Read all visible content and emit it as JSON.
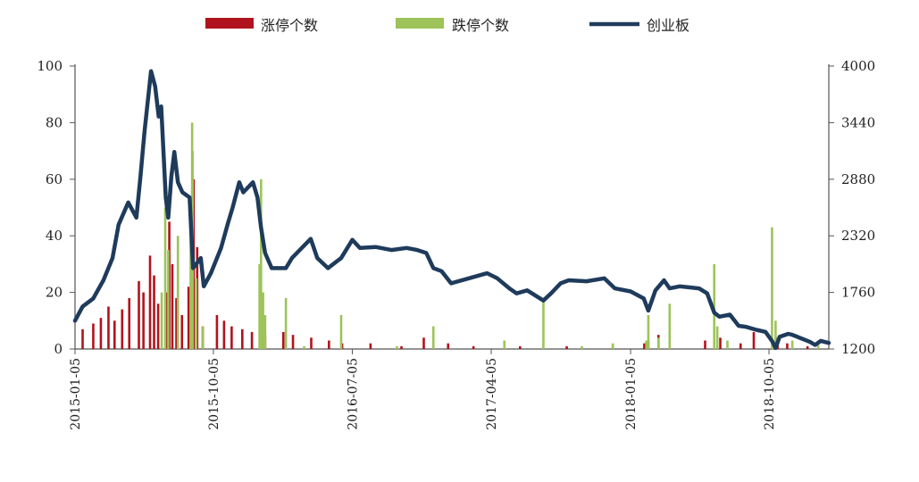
{
  "chart_data": {
    "type": "bar+line",
    "legend": {
      "placement": "top",
      "items": [
        {
          "label": "涨停个数",
          "kind": "bar",
          "color": "#b0131d"
        },
        {
          "label": "跌停个数",
          "kind": "bar",
          "color": "#9dc35a"
        },
        {
          "label": "创业板",
          "kind": "line",
          "color": "#1f3b5c"
        }
      ]
    },
    "left_axis": {
      "min": 0,
      "max": 100,
      "ticks": [
        "0",
        "20",
        "40",
        "60",
        "80",
        "100"
      ]
    },
    "right_axis": {
      "min": 1200,
      "max": 4000,
      "ticks": [
        "1200",
        "1760",
        "2320",
        "2880",
        "3440",
        "4000"
      ]
    },
    "x_axis": {
      "start": "2015-01-05",
      "end": "2019-01-31",
      "tick_labels": [
        "2015-01-05",
        "2015-10-05",
        "2016-07-05",
        "2017-04-05",
        "2018-01-05",
        "2018-10-05"
      ]
    },
    "series": [
      {
        "name": "涨停个数",
        "axis": "left",
        "points": [
          [
            "2015-01-20",
            7
          ],
          [
            "2015-02-10",
            9
          ],
          [
            "2015-02-25",
            11
          ],
          [
            "2015-03-12",
            15
          ],
          [
            "2015-03-24",
            10
          ],
          [
            "2015-04-08",
            14
          ],
          [
            "2015-04-22",
            18
          ],
          [
            "2015-05-11",
            24
          ],
          [
            "2015-05-20",
            20
          ],
          [
            "2015-06-02",
            33
          ],
          [
            "2015-06-10",
            26
          ],
          [
            "2015-06-18",
            16
          ],
          [
            "2015-07-06",
            20
          ],
          [
            "2015-07-10",
            45
          ],
          [
            "2015-07-16",
            30
          ],
          [
            "2015-07-24",
            18
          ],
          [
            "2015-08-04",
            12
          ],
          [
            "2015-08-17",
            22
          ],
          [
            "2015-08-27",
            60
          ],
          [
            "2015-09-03",
            36
          ],
          [
            "2015-09-14",
            8
          ],
          [
            "2015-10-12",
            12
          ],
          [
            "2015-10-26",
            10
          ],
          [
            "2015-11-10",
            8
          ],
          [
            "2015-12-01",
            7
          ],
          [
            "2015-12-20",
            6
          ],
          [
            "2016-01-15",
            5
          ],
          [
            "2016-02-20",
            6
          ],
          [
            "2016-03-10",
            5
          ],
          [
            "2016-04-15",
            4
          ],
          [
            "2016-05-20",
            3
          ],
          [
            "2016-06-15",
            2
          ],
          [
            "2016-08-10",
            2
          ],
          [
            "2016-10-10",
            1
          ],
          [
            "2016-11-23",
            4
          ],
          [
            "2017-01-10",
            2
          ],
          [
            "2017-03-01",
            1
          ],
          [
            "2017-06-01",
            1
          ],
          [
            "2017-09-01",
            1
          ],
          [
            "2017-12-01",
            1
          ],
          [
            "2018-02-01",
            2
          ],
          [
            "2018-02-09",
            3
          ],
          [
            "2018-03-01",
            5
          ],
          [
            "2018-06-01",
            3
          ],
          [
            "2018-07-01",
            4
          ],
          [
            "2018-08-10",
            2
          ],
          [
            "2018-09-05",
            6
          ],
          [
            "2018-10-22",
            4
          ],
          [
            "2018-11-10",
            2
          ],
          [
            "2018-12-20",
            1
          ]
        ]
      },
      {
        "name": "跌停个数",
        "axis": "left",
        "points": [
          [
            "2015-06-25",
            20
          ],
          [
            "2015-07-02",
            50
          ],
          [
            "2015-07-08",
            35
          ],
          [
            "2015-07-27",
            40
          ],
          [
            "2015-08-21",
            45
          ],
          [
            "2015-08-24",
            80
          ],
          [
            "2015-08-25",
            70
          ],
          [
            "2015-09-01",
            25
          ],
          [
            "2015-09-14",
            8
          ],
          [
            "2016-01-04",
            30
          ],
          [
            "2016-01-07",
            60
          ],
          [
            "2016-01-11",
            20
          ],
          [
            "2016-01-15",
            12
          ],
          [
            "2016-02-25",
            18
          ],
          [
            "2016-04-01",
            1
          ],
          [
            "2016-06-13",
            12
          ],
          [
            "2016-10-01",
            1
          ],
          [
            "2016-12-12",
            8
          ],
          [
            "2017-05-01",
            3
          ],
          [
            "2017-07-17",
            17
          ],
          [
            "2017-10-01",
            1
          ],
          [
            "2017-12-01",
            2
          ],
          [
            "2018-02-05",
            3
          ],
          [
            "2018-02-09",
            12
          ],
          [
            "2018-03-01",
            4
          ],
          [
            "2018-03-23",
            16
          ],
          [
            "2018-06-19",
            30
          ],
          [
            "2018-06-25",
            8
          ],
          [
            "2018-07-15",
            3
          ],
          [
            "2018-10-11",
            43
          ],
          [
            "2018-10-18",
            10
          ],
          [
            "2018-11-20",
            3
          ],
          [
            "2019-01-10",
            2
          ]
        ]
      },
      {
        "name": "创业板",
        "axis": "right",
        "points": [
          [
            "2015-01-05",
            1480
          ],
          [
            "2015-01-20",
            1620
          ],
          [
            "2015-02-10",
            1700
          ],
          [
            "2015-03-02",
            1880
          ],
          [
            "2015-03-20",
            2100
          ],
          [
            "2015-04-01",
            2430
          ],
          [
            "2015-04-20",
            2650
          ],
          [
            "2015-05-06",
            2500
          ],
          [
            "2015-05-14",
            2900
          ],
          [
            "2015-05-22",
            3350
          ],
          [
            "2015-06-04",
            3950
          ],
          [
            "2015-06-12",
            3800
          ],
          [
            "2015-06-19",
            3500
          ],
          [
            "2015-06-24",
            3600
          ],
          [
            "2015-07-03",
            2700
          ],
          [
            "2015-07-08",
            2500
          ],
          [
            "2015-07-14",
            2900
          ],
          [
            "2015-07-20",
            3150
          ],
          [
            "2015-07-27",
            2850
          ],
          [
            "2015-08-05",
            2750
          ],
          [
            "2015-08-19",
            2700
          ],
          [
            "2015-08-26",
            2000
          ],
          [
            "2015-09-10",
            2100
          ],
          [
            "2015-09-16",
            1820
          ],
          [
            "2015-09-30",
            1950
          ],
          [
            "2015-10-20",
            2200
          ],
          [
            "2015-11-03",
            2450
          ],
          [
            "2015-11-12",
            2600
          ],
          [
            "2015-11-25",
            2850
          ],
          [
            "2015-12-03",
            2750
          ],
          [
            "2015-12-22",
            2850
          ],
          [
            "2015-12-31",
            2700
          ],
          [
            "2016-01-07",
            2400
          ],
          [
            "2016-01-15",
            2150
          ],
          [
            "2016-01-28",
            2000
          ],
          [
            "2016-02-25",
            2000
          ],
          [
            "2016-03-08",
            2100
          ],
          [
            "2016-04-14",
            2290
          ],
          [
            "2016-04-27",
            2100
          ],
          [
            "2016-05-18",
            2000
          ],
          [
            "2016-06-13",
            2100
          ],
          [
            "2016-07-05",
            2280
          ],
          [
            "2016-07-20",
            2200
          ],
          [
            "2016-08-20",
            2210
          ],
          [
            "2016-09-20",
            2180
          ],
          [
            "2016-10-20",
            2200
          ],
          [
            "2016-11-10",
            2180
          ],
          [
            "2016-11-28",
            2150
          ],
          [
            "2016-12-12",
            2000
          ],
          [
            "2016-12-28",
            1970
          ],
          [
            "2017-01-16",
            1850
          ],
          [
            "2017-02-20",
            1900
          ],
          [
            "2017-03-28",
            1950
          ],
          [
            "2017-04-17",
            1900
          ],
          [
            "2017-05-11",
            1800
          ],
          [
            "2017-05-25",
            1750
          ],
          [
            "2017-06-15",
            1780
          ],
          [
            "2017-07-17",
            1680
          ],
          [
            "2017-08-01",
            1750
          ],
          [
            "2017-08-20",
            1850
          ],
          [
            "2017-09-05",
            1880
          ],
          [
            "2017-10-10",
            1870
          ],
          [
            "2017-11-14",
            1900
          ],
          [
            "2017-12-05",
            1800
          ],
          [
            "2018-01-05",
            1770
          ],
          [
            "2018-01-31",
            1700
          ],
          [
            "2018-02-09",
            1580
          ],
          [
            "2018-02-23",
            1780
          ],
          [
            "2018-03-12",
            1880
          ],
          [
            "2018-03-23",
            1800
          ],
          [
            "2018-04-12",
            1820
          ],
          [
            "2018-05-20",
            1800
          ],
          [
            "2018-06-05",
            1750
          ],
          [
            "2018-06-19",
            1560
          ],
          [
            "2018-06-29",
            1520
          ],
          [
            "2018-07-20",
            1540
          ],
          [
            "2018-08-06",
            1430
          ],
          [
            "2018-08-20",
            1420
          ],
          [
            "2018-09-10",
            1390
          ],
          [
            "2018-09-28",
            1370
          ],
          [
            "2018-10-11",
            1280
          ],
          [
            "2018-10-18",
            1210
          ],
          [
            "2018-10-26",
            1320
          ],
          [
            "2018-11-12",
            1350
          ],
          [
            "2018-11-20",
            1340
          ],
          [
            "2018-12-05",
            1310
          ],
          [
            "2018-12-25",
            1270
          ],
          [
            "2019-01-04",
            1240
          ],
          [
            "2019-01-15",
            1280
          ],
          [
            "2019-01-31",
            1260
          ]
        ]
      }
    ],
    "grid": false
  }
}
